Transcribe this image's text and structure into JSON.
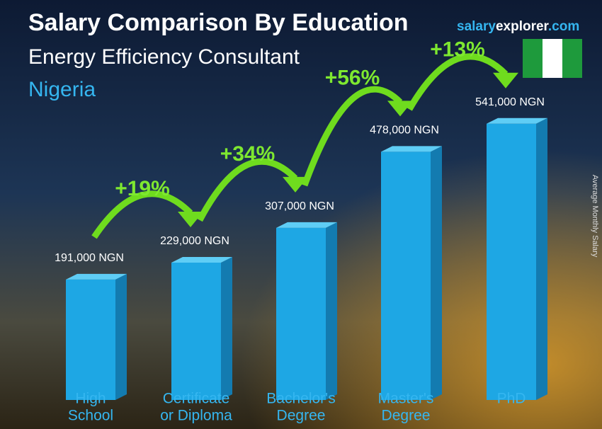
{
  "chart_data": {
    "type": "bar3d",
    "title": "Salary Comparison By Education",
    "subtitle": "Energy Efficiency Consultant",
    "location": "Nigeria",
    "brand": [
      "salary",
      "explorer",
      ".com"
    ],
    "y_label": "Average Monthly Salary",
    "categories": [
      [
        "High",
        "School"
      ],
      [
        "Certificate",
        "or Diploma"
      ],
      [
        "Bachelor's",
        "Degree"
      ],
      [
        "Master's",
        "Degree"
      ],
      [
        "PhD"
      ]
    ],
    "values": [
      191000,
      229000,
      307000,
      478000,
      541000
    ],
    "value_labels": [
      "191,000 NGN",
      "229,000 NGN",
      "307,000 NGN",
      "478,000 NGN",
      "541,000 NGN"
    ],
    "annotations": [
      "+19%",
      "+34%",
      "+56%",
      "+13%"
    ],
    "color": "#1ea7e4",
    "flag_colors": [
      "#1e9a3c",
      "#ffffff",
      "#1e9a3c"
    ]
  }
}
